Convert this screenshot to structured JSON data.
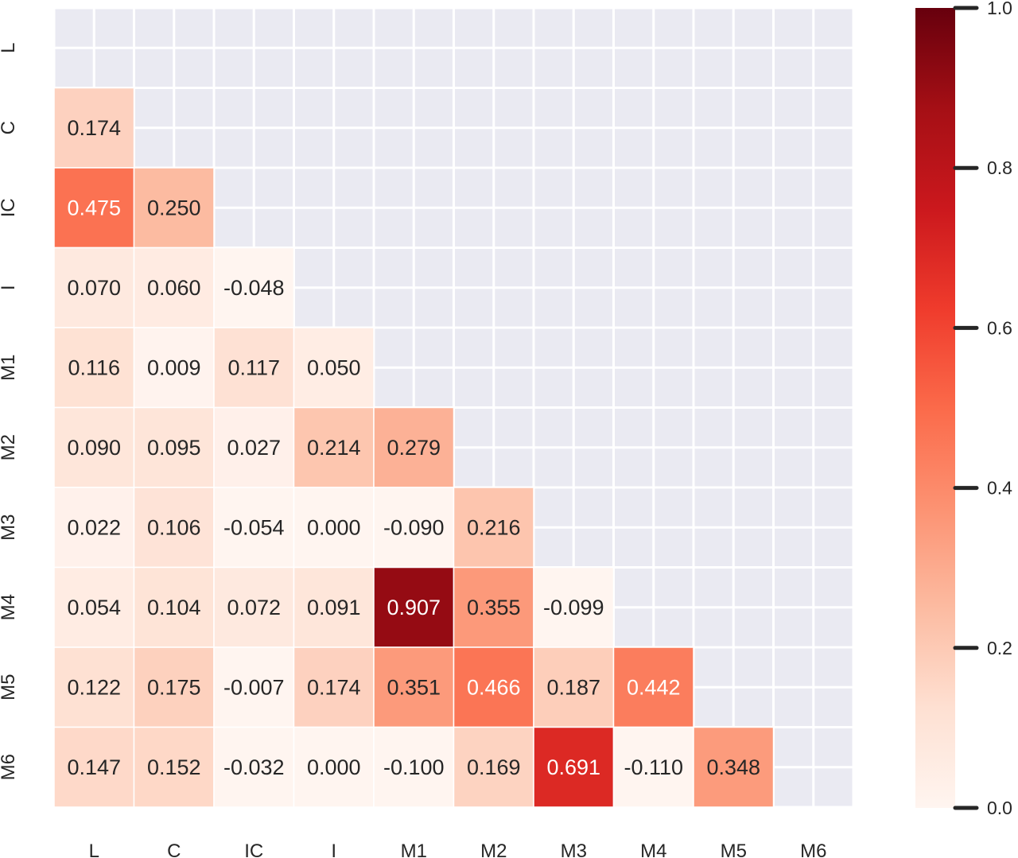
{
  "chart_data": {
    "type": "heatmap",
    "rows": [
      "L",
      "C",
      "IC",
      "I",
      "M1",
      "M2",
      "M3",
      "M4",
      "M5",
      "M6"
    ],
    "columns": [
      "L",
      "C",
      "IC",
      "I",
      "M1",
      "M2",
      "M3",
      "M4",
      "M5",
      "M6"
    ],
    "mask": "upper-triangle-including-diagonal",
    "values": [
      [
        null,
        null,
        null,
        null,
        null,
        null,
        null,
        null,
        null,
        null
      ],
      [
        0.174,
        null,
        null,
        null,
        null,
        null,
        null,
        null,
        null,
        null
      ],
      [
        0.475,
        0.25,
        null,
        null,
        null,
        null,
        null,
        null,
        null,
        null
      ],
      [
        0.07,
        0.06,
        -0.048,
        null,
        null,
        null,
        null,
        null,
        null,
        null
      ],
      [
        0.116,
        0.009,
        0.117,
        0.05,
        null,
        null,
        null,
        null,
        null,
        null
      ],
      [
        0.09,
        0.095,
        0.027,
        0.214,
        0.279,
        null,
        null,
        null,
        null,
        null
      ],
      [
        0.022,
        0.106,
        -0.054,
        0.0,
        -0.09,
        0.216,
        null,
        null,
        null,
        null
      ],
      [
        0.054,
        0.104,
        0.072,
        0.091,
        0.907,
        0.355,
        -0.099,
        null,
        null,
        null
      ],
      [
        0.122,
        0.175,
        -0.007,
        0.174,
        0.351,
        0.466,
        0.187,
        0.442,
        null,
        null
      ],
      [
        0.147,
        0.152,
        -0.032,
        0.0,
        -0.1,
        0.169,
        0.691,
        -0.11,
        0.348,
        null
      ]
    ],
    "labels": [
      [
        null,
        null,
        null,
        null,
        null,
        null,
        null,
        null,
        null,
        null
      ],
      [
        "0.174",
        null,
        null,
        null,
        null,
        null,
        null,
        null,
        null,
        null
      ],
      [
        "0.475",
        "0.250",
        null,
        null,
        null,
        null,
        null,
        null,
        null,
        null
      ],
      [
        "0.070",
        "0.060",
        "-0.048",
        null,
        null,
        null,
        null,
        null,
        null,
        null
      ],
      [
        "0.116",
        "0.009",
        "0.117",
        "0.050",
        null,
        null,
        null,
        null,
        null,
        null
      ],
      [
        "0.090",
        "0.095",
        "0.027",
        "0.214",
        "0.279",
        null,
        null,
        null,
        null,
        null
      ],
      [
        "0.022",
        "0.106",
        "-0.054",
        "0.000",
        "-0.090",
        "0.216",
        null,
        null,
        null,
        null
      ],
      [
        "0.054",
        "0.104",
        "0.072",
        "0.091",
        "0.907",
        "0.355",
        "-0.099",
        null,
        null,
        null
      ],
      [
        "0.122",
        "0.175",
        "-0.007",
        "0.174",
        "0.351",
        "0.466",
        "0.187",
        "0.442",
        null,
        null
      ],
      [
        "0.147",
        "0.152",
        "-0.032",
        "0.000",
        "-0.100",
        "0.169",
        "0.691",
        "-0.110",
        "0.348",
        null
      ]
    ],
    "colorbar": {
      "min": 0.0,
      "max": 1.0,
      "ticks": [
        0.0,
        0.2,
        0.4,
        0.6,
        0.8,
        1.0
      ],
      "tick_labels": [
        "0.0",
        "0.2",
        "0.4",
        "0.6",
        "0.8",
        "1.0"
      ]
    },
    "colormap": "Reds",
    "grid": true,
    "legend": "colorbar-right",
    "title": "",
    "xlabel": "",
    "ylabel": ""
  },
  "colors": {
    "background_grid": "#eaeaf2",
    "grid_line": "#ffffff",
    "text_dark": "#262626",
    "text_light": "#ffffff",
    "tick_mark": "#262626"
  }
}
